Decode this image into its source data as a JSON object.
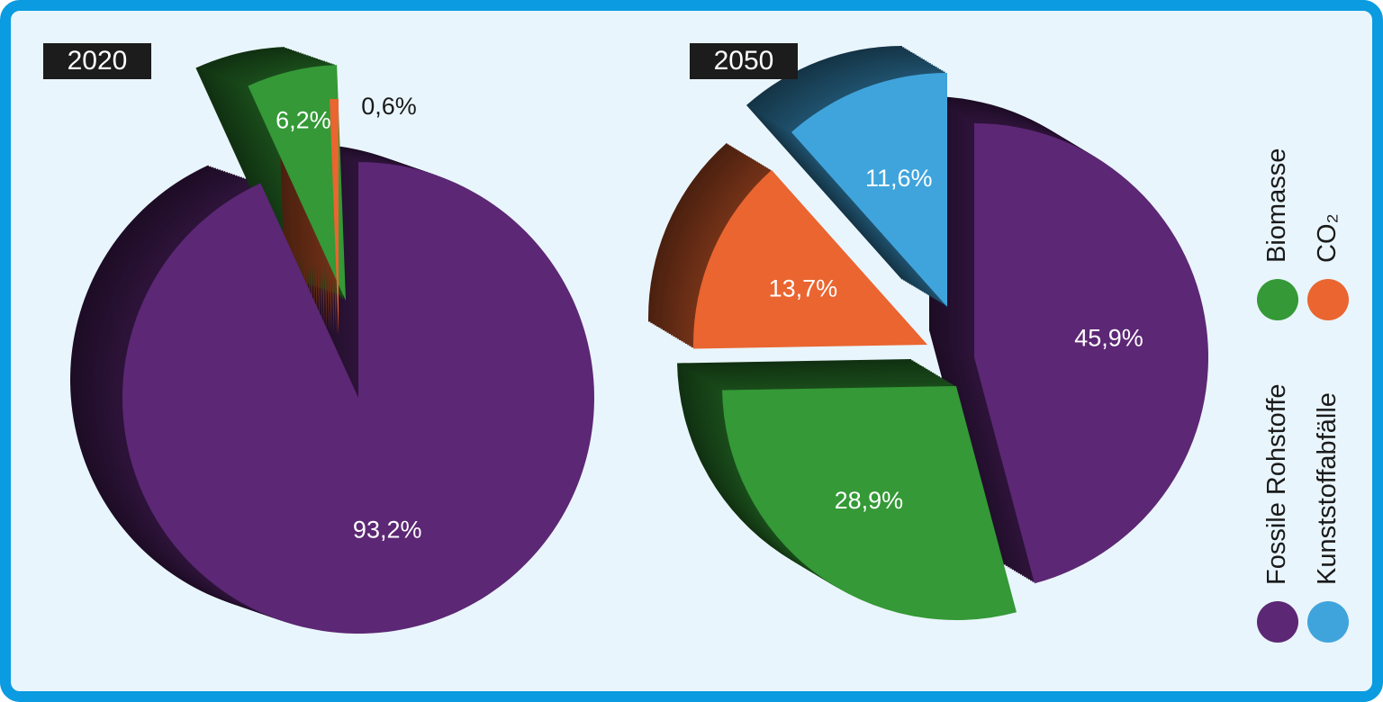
{
  "colors": {
    "frame_border": "#0a9be0",
    "background": "#e9f5fc",
    "fossile": "#5c2774",
    "biomasse": "#349936",
    "co2": "#ea6530",
    "kunststoff": "#40a4dc"
  },
  "legend": [
    {
      "key": "biomasse",
      "label": "Biomasse",
      "color": "#349936"
    },
    {
      "key": "co2",
      "label": "CO₂",
      "color": "#ea6530"
    },
    {
      "key": "fossile",
      "label": "Fossile Rohstoffe",
      "color": "#5c2774"
    },
    {
      "key": "kunststoff",
      "label": "Kunststoffabfälle",
      "color": "#40a4dc"
    }
  ],
  "chart_data": [
    {
      "type": "pie",
      "title": "2020",
      "slices": [
        {
          "name": "Fossile Rohstoffe",
          "value": 93.2,
          "label": "93,2%",
          "color": "#5c2774"
        },
        {
          "name": "Biomasse",
          "value": 6.2,
          "label": "6,2%",
          "color": "#349936"
        },
        {
          "name": "CO₂",
          "value": 0.6,
          "label": "0,6%",
          "color": "#ea6530"
        }
      ]
    },
    {
      "type": "pie",
      "title": "2050",
      "slices": [
        {
          "name": "Fossile Rohstoffe",
          "value": 45.9,
          "label": "45,9%",
          "color": "#5c2774"
        },
        {
          "name": "Biomasse",
          "value": 28.9,
          "label": "28,9%",
          "color": "#349936"
        },
        {
          "name": "CO₂",
          "value": 13.7,
          "label": "13,7%",
          "color": "#ea6530"
        },
        {
          "name": "Kunststoffabfälle",
          "value": 11.6,
          "label": "11,6%",
          "color": "#40a4dc"
        }
      ]
    }
  ]
}
